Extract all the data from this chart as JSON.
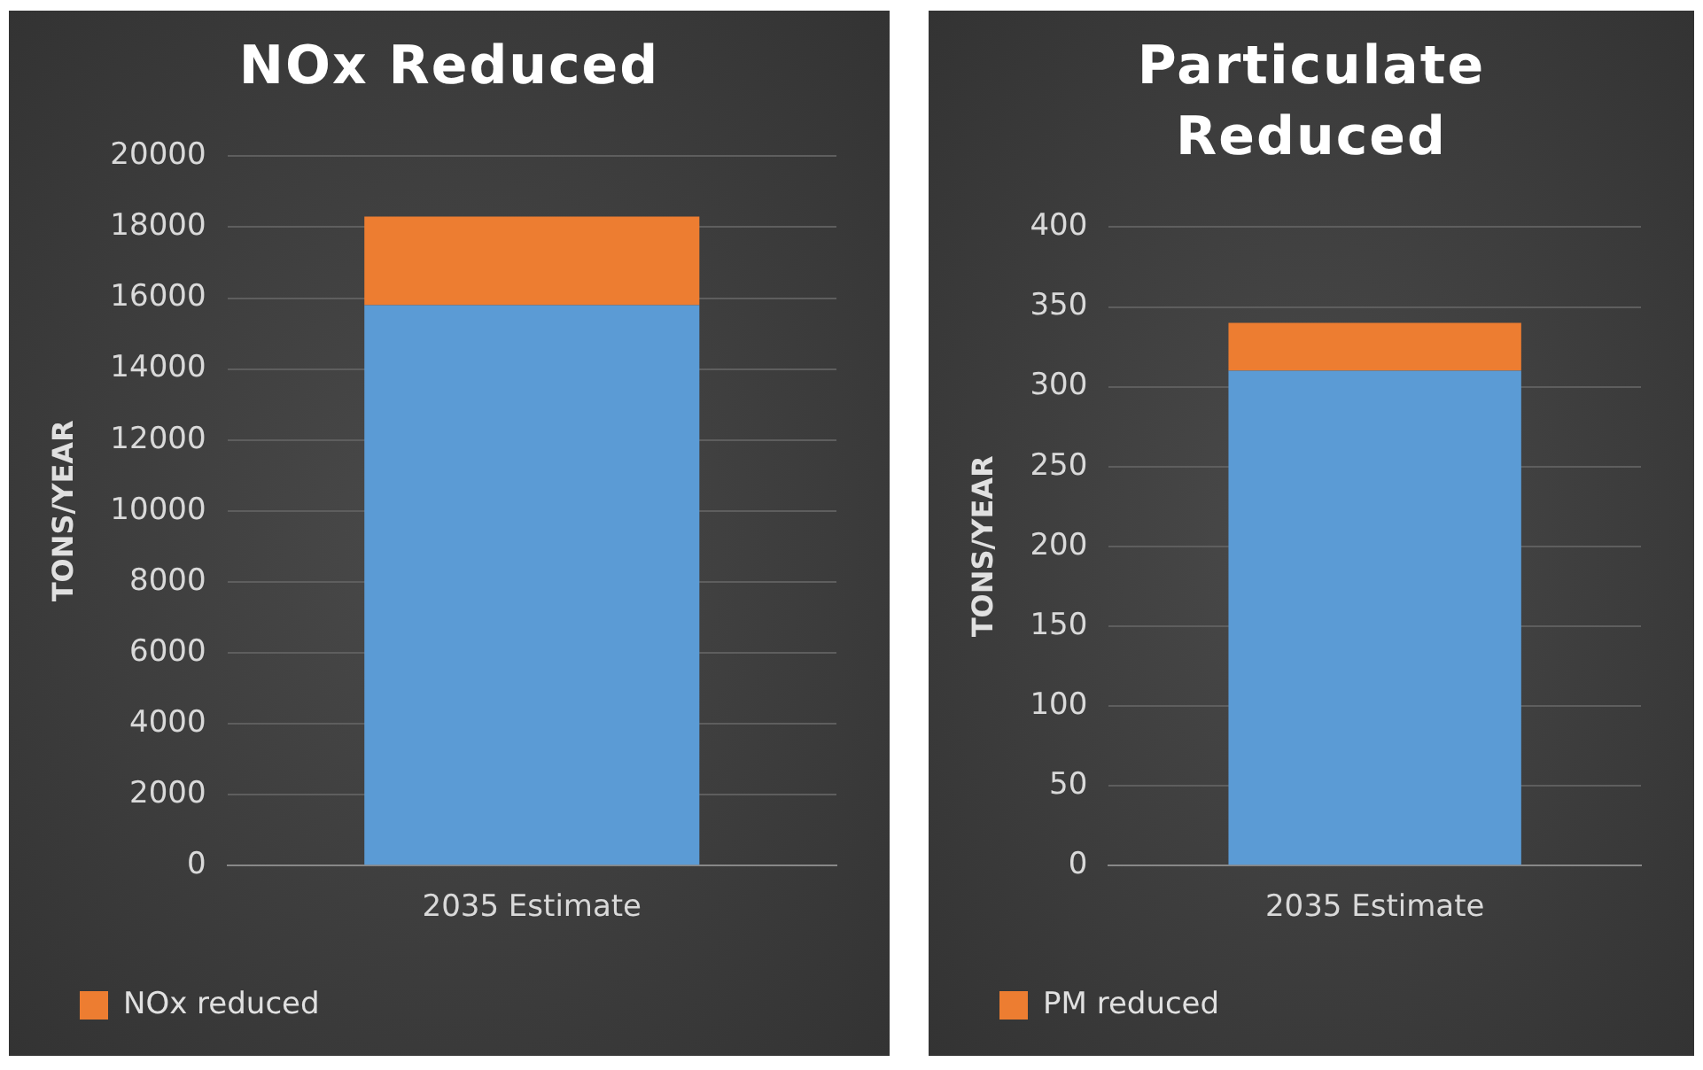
{
  "chart_data": [
    {
      "type": "bar",
      "title": "NOx Reduced",
      "ylabel": "TONS/YEAR",
      "categories": [
        "2035 Estimate"
      ],
      "stacked": true,
      "grid": "y",
      "legend": "bottom",
      "ylim": [
        0,
        20000
      ],
      "yticks": [
        0,
        2000,
        4000,
        6000,
        8000,
        10000,
        12000,
        14000,
        16000,
        18000,
        20000
      ],
      "series": [
        {
          "color": "#5b9bd5",
          "values": [
            15800
          ]
        },
        {
          "name": "NOx reduced",
          "color": "#ed7d31",
          "values": [
            2500
          ]
        }
      ]
    },
    {
      "type": "bar",
      "title": "Particulate Reduced",
      "ylabel": "TONS/YEAR",
      "categories": [
        "2035 Estimate"
      ],
      "stacked": true,
      "grid": "y",
      "legend": "bottom",
      "ylim": [
        0,
        400
      ],
      "yticks": [
        0,
        50,
        100,
        150,
        200,
        250,
        300,
        350,
        400
      ],
      "series": [
        {
          "color": "#5b9bd5",
          "values": [
            310
          ]
        },
        {
          "name": "PM reduced",
          "color": "#ed7d31",
          "values": [
            30
          ]
        }
      ]
    }
  ]
}
